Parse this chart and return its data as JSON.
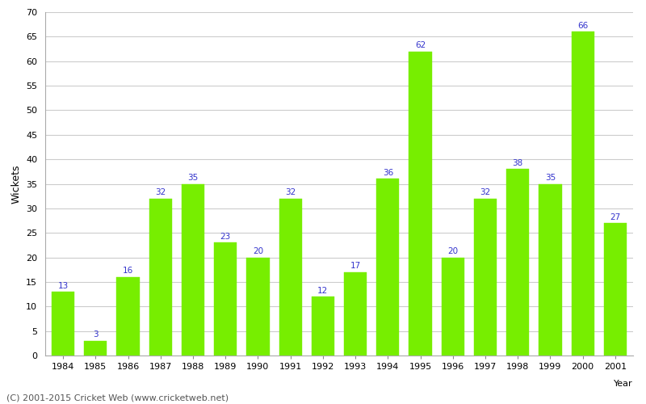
{
  "years": [
    1984,
    1985,
    1986,
    1987,
    1988,
    1989,
    1990,
    1991,
    1992,
    1993,
    1994,
    1995,
    1996,
    1997,
    1998,
    1999,
    2000,
    2001
  ],
  "wickets": [
    13,
    3,
    16,
    32,
    35,
    23,
    20,
    32,
    12,
    17,
    36,
    62,
    20,
    32,
    38,
    35,
    66,
    27
  ],
  "bar_color": "#77ee00",
  "bar_edge_color": "#77ee00",
  "ylabel": "Wickets",
  "xlabel_side": "Year",
  "ylim": [
    0,
    70
  ],
  "yticks": [
    0,
    5,
    10,
    15,
    20,
    25,
    30,
    35,
    40,
    45,
    50,
    55,
    60,
    65,
    70
  ],
  "label_color": "#3333cc",
  "label_fontsize": 7.5,
  "background_color": "#ffffff",
  "grid_color": "#cccccc",
  "footer_text": "(C) 2001-2015 Cricket Web (www.cricketweb.net)",
  "footer_fontsize": 8,
  "ylabel_fontsize": 9,
  "tick_fontsize": 8
}
